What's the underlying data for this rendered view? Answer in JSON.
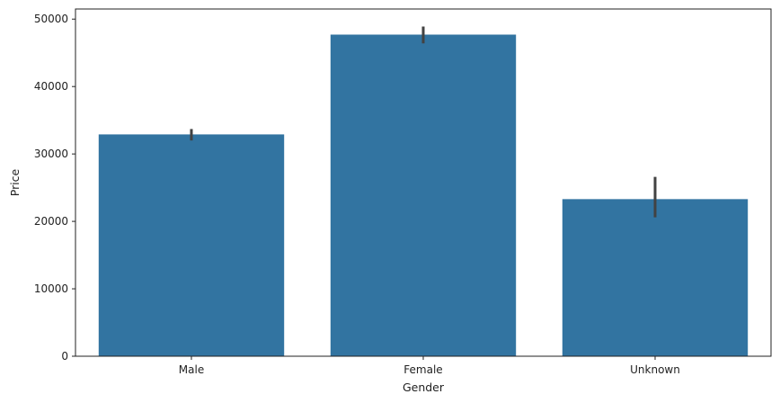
{
  "chart_data": {
    "type": "bar",
    "title": "",
    "xlabel": "Gender",
    "ylabel": "Price",
    "categories": [
      "Male",
      "Female",
      "Unknown"
    ],
    "values": [
      32900,
      47700,
      23300
    ],
    "error_low": [
      32000,
      46400,
      20600
    ],
    "error_high": [
      33700,
      48900,
      26600
    ],
    "ylim": [
      0,
      51500
    ],
    "yticks": [
      0,
      10000,
      20000,
      30000,
      40000,
      50000
    ],
    "ytick_labels": [
      "0",
      "10000",
      "20000",
      "30000",
      "40000",
      "50000"
    ],
    "grid": false,
    "legend": "none",
    "bar_color": "#3274a1",
    "error_color": "#424242"
  }
}
